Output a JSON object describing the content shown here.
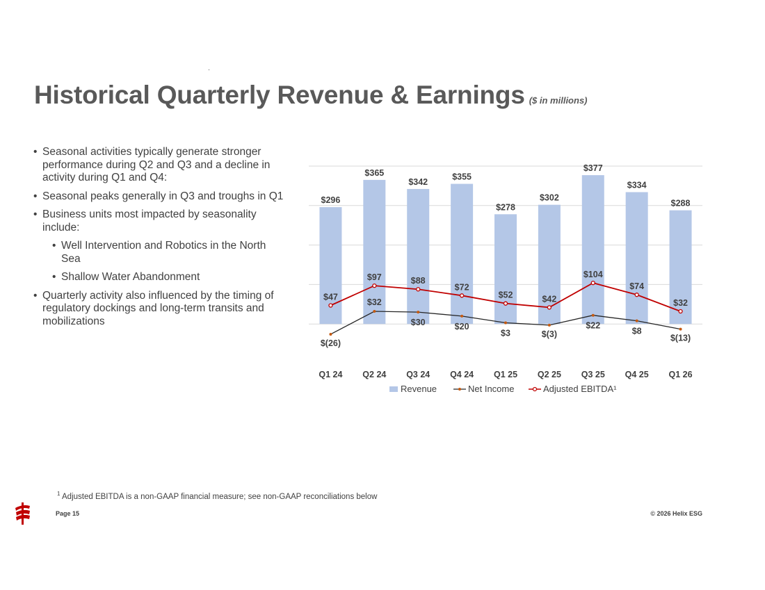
{
  "slide": {
    "title": "Historical Quarterly Revenue & Earnings",
    "title_unit": "($ in millions)",
    "page": "Page 15",
    "copyright": "© 2026 Helix ESG",
    "footnote_mark": "1",
    "footnote_text": "Adjusted EBITDA is a non-GAAP financial measure; see non-GAAP reconciliations below",
    "logo_icon": "helix-logo-icon"
  },
  "bullets": [
    {
      "level": 1,
      "text": "Seasonal activities typically generate stronger performance during Q2 and Q3 and a decline in activity during Q1 and Q4:"
    },
    {
      "level": 1,
      "text": "Seasonal peaks generally in Q3 and troughs in Q1"
    },
    {
      "level": 1,
      "text": "Business units most impacted by seasonality include:"
    },
    {
      "level": 2,
      "text": "Well Intervention and Robotics in the North Sea"
    },
    {
      "level": 2,
      "text": "Shallow Water Abandonment"
    },
    {
      "level": 1,
      "text": "Quarterly activity also influenced by the timing of regulatory dockings and long-term transits and mobilizations"
    }
  ],
  "chart_data": {
    "type": "bar",
    "title": "",
    "categories": [
      "Q1 24",
      "Q2 24",
      "Q3 24",
      "Q4 24",
      "Q1 25",
      "Q2 25",
      "Q3 25",
      "Q4 25",
      "Q1 26"
    ],
    "series": [
      {
        "name": "Revenue",
        "kind": "bar",
        "color": "#b4c7e7",
        "values": [
          296,
          365,
          342,
          355,
          278,
          302,
          377,
          334,
          288
        ],
        "labels": [
          "$296",
          "$365",
          "$342",
          "$355",
          "$278",
          "$302",
          "$377",
          "$334",
          "$288"
        ]
      },
      {
        "name": "Net Income",
        "kind": "line",
        "color": "#262626",
        "marker_color": "#c55a11",
        "values": [
          -26,
          32,
          30,
          20,
          3,
          -3,
          22,
          8,
          -13
        ],
        "labels": [
          "$(26)",
          "$32",
          "$30",
          "$20",
          "$3",
          "$(3)",
          "$22",
          "$8",
          "$(13)"
        ]
      },
      {
        "name": "Adjusted EBITDA¹",
        "kind": "line",
        "color": "#c00000",
        "marker_color": "#c00000",
        "values": [
          47,
          97,
          88,
          72,
          52,
          42,
          104,
          74,
          32
        ],
        "labels": [
          "$47",
          "$97",
          "$88",
          "$72",
          "$52",
          "$42",
          "$104",
          "$74",
          "$32"
        ]
      }
    ],
    "ylim": [
      -100,
      400
    ],
    "gridlines": [
      0,
      100,
      200,
      300,
      400
    ],
    "legend": "bottom",
    "grid_color": "#d9d9d9"
  }
}
